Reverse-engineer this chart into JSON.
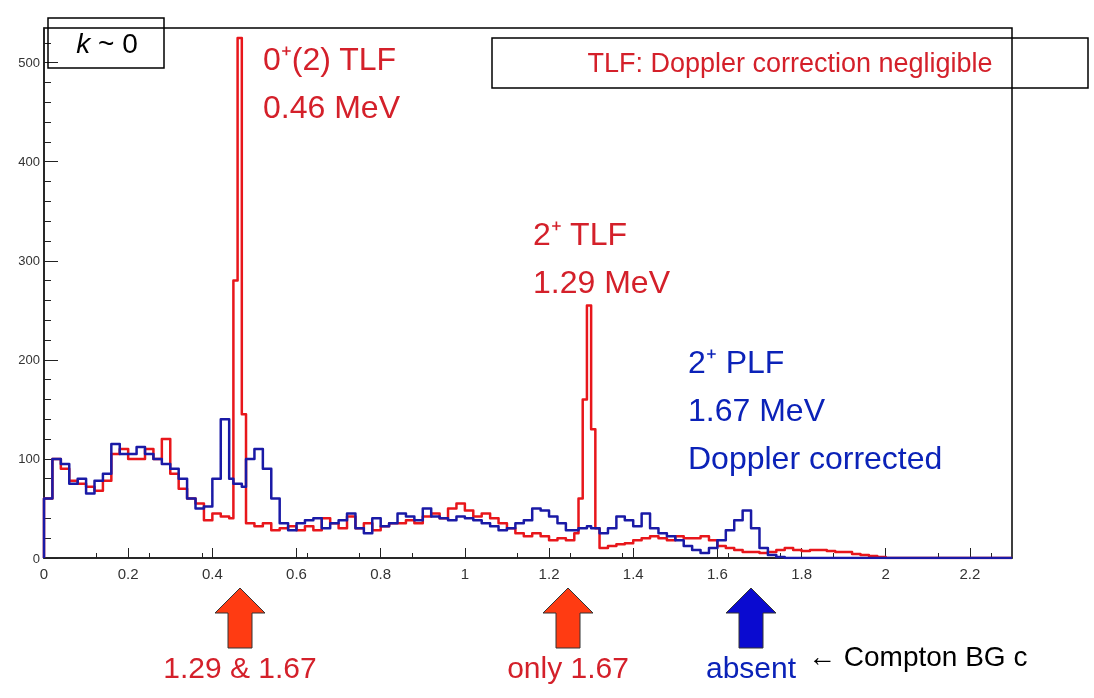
{
  "chart_data": {
    "type": "histogram",
    "bins": [
      0,
      0.02,
      0.04,
      0.06,
      0.08,
      0.1,
      0.12,
      0.14,
      0.16,
      0.18,
      0.2,
      0.22,
      0.24,
      0.26,
      0.28,
      0.3,
      0.32,
      0.34,
      0.36,
      0.38,
      0.4,
      0.42,
      0.44,
      0.45,
      0.46,
      0.47,
      0.48,
      0.5,
      0.52,
      0.54,
      0.56,
      0.58,
      0.6,
      0.62,
      0.64,
      0.66,
      0.68,
      0.7,
      0.72,
      0.74,
      0.76,
      0.78,
      0.8,
      0.82,
      0.84,
      0.86,
      0.88,
      0.9,
      0.92,
      0.94,
      0.96,
      0.98,
      1,
      1.02,
      1.04,
      1.06,
      1.08,
      1.1,
      1.12,
      1.14,
      1.16,
      1.18,
      1.2,
      1.22,
      1.24,
      1.26,
      1.27,
      1.28,
      1.29,
      1.3,
      1.31,
      1.32,
      1.34,
      1.36,
      1.38,
      1.4,
      1.42,
      1.44,
      1.46,
      1.48,
      1.5,
      1.52,
      1.54,
      1.56,
      1.58,
      1.6,
      1.62,
      1.64,
      1.66,
      1.68,
      1.7,
      1.72,
      1.74,
      1.76,
      1.78,
      1.8,
      1.82,
      1.84,
      1.86,
      1.88,
      1.9,
      1.92,
      1.94,
      1.96,
      1.98,
      2,
      2.3
    ],
    "series": [
      {
        "color": "#e8161b",
        "values": [
          60,
          100,
          90,
          78,
          75,
          72,
          68,
          78,
          105,
          110,
          100,
          100,
          110,
          100,
          120,
          85,
          70,
          60,
          55,
          38,
          45,
          42,
          40,
          280,
          525,
          145,
          35,
          32,
          35,
          28,
          30,
          32,
          28,
          32,
          28,
          40,
          35,
          30,
          42,
          30,
          35,
          28,
          32,
          35,
          35,
          38,
          35,
          42,
          45,
          40,
          50,
          55,
          48,
          42,
          45,
          40,
          35,
          30,
          25,
          22,
          25,
          22,
          18,
          20,
          18,
          25,
          60,
          160,
          255,
          130,
          30,
          10,
          12,
          14,
          15,
          18,
          20,
          22,
          20,
          18,
          22,
          20,
          20,
          22,
          18,
          12,
          10,
          8,
          6,
          6,
          5,
          6,
          8,
          10,
          8,
          7,
          8,
          8,
          7,
          6,
          6,
          4,
          3,
          2,
          1,
          0
        ]
      },
      {
        "color": "#1a1aa6",
        "values": [
          60,
          100,
          95,
          75,
          80,
          65,
          78,
          85,
          115,
          105,
          105,
          112,
          105,
          100,
          95,
          90,
          80,
          60,
          50,
          52,
          80,
          140,
          80,
          75,
          75,
          72,
          100,
          110,
          90,
          60,
          35,
          28,
          35,
          38,
          40,
          30,
          35,
          38,
          45,
          30,
          25,
          40,
          32,
          35,
          45,
          42,
          38,
          50,
          42,
          40,
          38,
          42,
          40,
          38,
          35,
          32,
          28,
          30,
          35,
          38,
          50,
          48,
          42,
          35,
          28,
          28,
          30,
          30,
          32,
          30,
          30,
          25,
          30,
          42,
          38,
          32,
          45,
          30,
          25,
          22,
          18,
          12,
          8,
          5,
          10,
          18,
          28,
          38,
          48,
          30,
          10,
          3,
          1,
          0,
          0,
          0,
          0,
          0,
          0,
          0,
          0,
          0,
          0,
          0,
          0,
          0
        ]
      }
    ],
    "xlim": [
      0,
      2.3
    ],
    "xticks": [
      0,
      0.2,
      0.4,
      0.6,
      0.8,
      1,
      1.2,
      1.4,
      1.6,
      1.8,
      2,
      2.2
    ],
    "ylim": [
      0,
      535
    ],
    "yticks": [
      0,
      100,
      200,
      300,
      400,
      500
    ],
    "grid": false,
    "annotations": [
      "k ~ 0",
      "TLF: Doppler correction negligible",
      "0⁺(2) TLF\n0.46 MeV",
      "2⁺ TLF\n1.29 MeV",
      "2⁺ PLF\n1.67 MeV\nDoppler corrected",
      "1.29 & 1.67",
      "only 1.67",
      "absent",
      "← Compton BG c"
    ]
  }
}
